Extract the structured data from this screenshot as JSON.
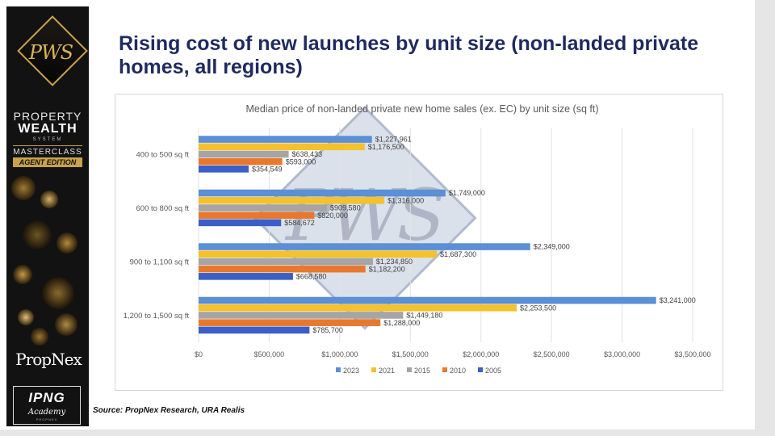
{
  "title": "Rising cost of new launches by unit size (non-landed private homes, all regions)",
  "source": "Source: PropNex Research, URA Realis",
  "sidebar": {
    "badge_text": "PWS",
    "line1": "PROPERTY",
    "line2": "WEALTH",
    "line2_sub": "SYSTEM",
    "line3": "MASTERCLASS",
    "line4": "AGENT EDITION",
    "propnex": "PropNex",
    "academy_main": "IPNG",
    "academy_sub": "Academy",
    "academy_tiny": "PROPNEX"
  },
  "watermark_text": "PWS",
  "colors": {
    "title": "#1f2a5e",
    "s2023": "#5b8fd6",
    "s2021": "#f5c12c",
    "s2015": "#a5a5a5",
    "s2010": "#e9782f",
    "s2005": "#3a5fc8",
    "gold": "#c9a24a"
  },
  "chart_data": {
    "type": "bar",
    "orientation": "horizontal",
    "title": "Median price of non-landed private new home sales (ex. EC) by unit size (sq ft)",
    "categories": [
      "400 to 500 sq ft",
      "600 to 800 sq ft",
      "900 to 1,100 sq ft",
      "1,200 to 1,500 sq ft"
    ],
    "series": [
      {
        "name": "2023",
        "color": "#5b8fd6",
        "values": [
          1227961,
          1749000,
          2349000,
          3241000
        ],
        "labels": [
          "$1,227,961",
          "$1,749,000",
          "$2,349,000",
          "$3,241,000"
        ]
      },
      {
        "name": "2021",
        "color": "#f5c12c",
        "values": [
          1176500,
          1316000,
          1687300,
          2253500
        ],
        "labels": [
          "$1,176,500",
          "$1,316,000",
          "$1,687,300",
          "$2,253,500"
        ]
      },
      {
        "name": "2015",
        "color": "#a5a5a5",
        "values": [
          638433,
          909580,
          1234850,
          1449180
        ],
        "labels": [
          "$638,433",
          "$909,580",
          "$1,234,850",
          "$1,449,180"
        ]
      },
      {
        "name": "2010",
        "color": "#e9782f",
        "values": [
          593000,
          820000,
          1182200,
          1288000
        ],
        "labels": [
          "$593,000",
          "$820,000",
          "$1,182,200",
          "$1,288,000"
        ]
      },
      {
        "name": "2005",
        "color": "#3a5fc8",
        "values": [
          354549,
          584672,
          668580,
          785700
        ],
        "labels": [
          "$354,549",
          "$584,672",
          "$668,580",
          "$785,700"
        ]
      }
    ],
    "xlim": [
      0,
      3500000
    ],
    "xticks": [
      0,
      500000,
      1000000,
      1500000,
      2000000,
      2500000,
      3000000,
      3500000
    ],
    "xtick_labels": [
      "$0",
      "$500,000",
      "$1,000,000",
      "$1,500,000",
      "$2,000,000",
      "$2,500,000",
      "$3,000,000",
      "$3,500,000"
    ],
    "grid": true,
    "legend": "bottom"
  }
}
